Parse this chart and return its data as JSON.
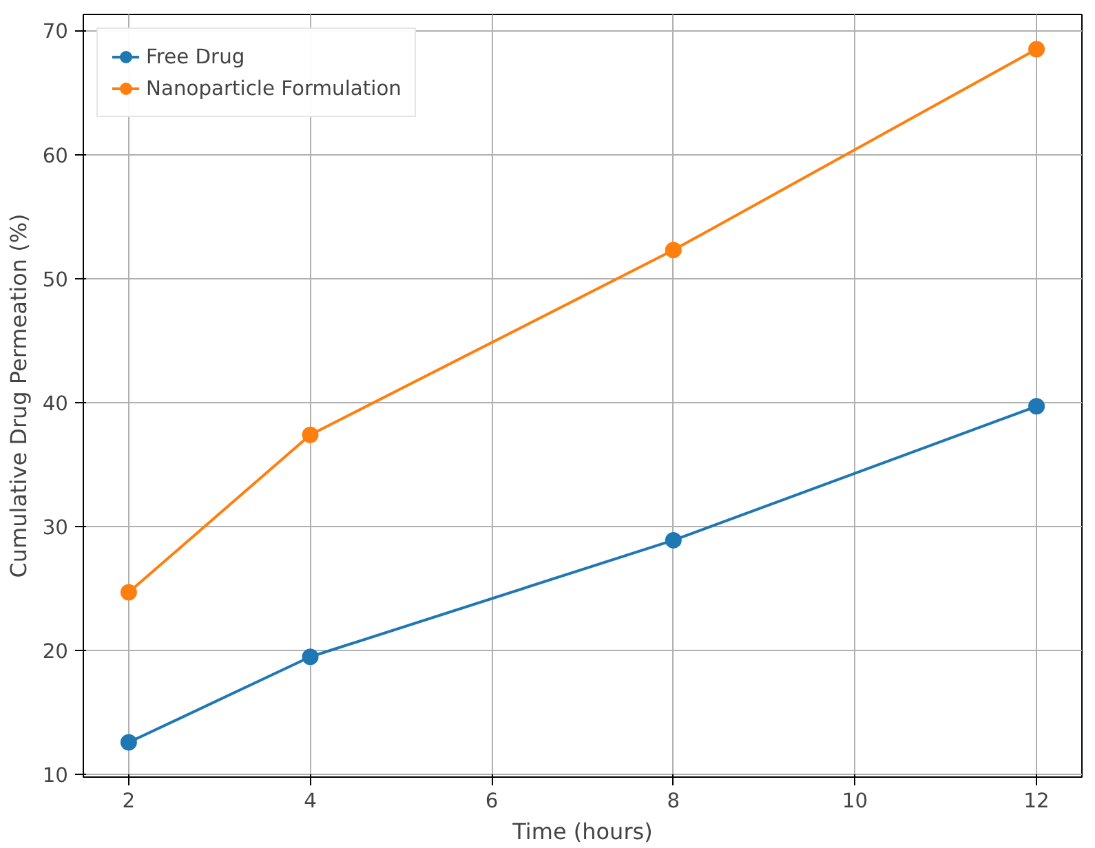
{
  "chart_data": {
    "type": "line",
    "xlabel": "Time (hours)",
    "ylabel": "Cumulative Drug Permeation (%)",
    "x": [
      2,
      4,
      8,
      12
    ],
    "series": [
      {
        "name": "Free Drug",
        "color": "#1f77b4",
        "values": [
          12.6,
          19.5,
          28.9,
          39.7
        ]
      },
      {
        "name": "Nanoparticle Formulation",
        "color": "#ff7f0e",
        "values": [
          24.7,
          37.4,
          52.3,
          68.5
        ]
      }
    ],
    "xlim": [
      1.5,
      12.5
    ],
    "ylim": [
      9.8,
      71.3
    ],
    "xticks": [
      2,
      4,
      6,
      8,
      10,
      12
    ],
    "yticks": [
      10,
      20,
      30,
      40,
      50,
      60,
      70
    ],
    "grid": true,
    "legend": "top left",
    "marker": "circle",
    "line_style": "solid"
  }
}
